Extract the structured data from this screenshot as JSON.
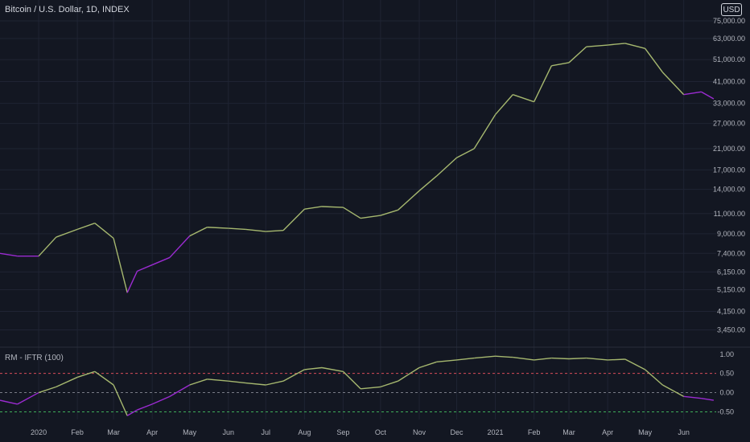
{
  "header": {
    "title": "Bitcoin / U.S. Dollar, 1D, INDEX",
    "currency_button": "USD"
  },
  "indicator": {
    "title": "RM - IFTR (100)"
  },
  "colors": {
    "bull": "#a6b86f",
    "bear": "#9b2bd1",
    "bg": "#131722",
    "grid": "#1f2433",
    "upper": "#d94c59",
    "lower": "#3fae5a",
    "zero": "#787b86"
  },
  "chart_data": [
    {
      "type": "line",
      "title": "Bitcoin / U.S. Dollar, 1D, INDEX",
      "y_scale": "log",
      "ylim": [
        3000,
        80000
      ],
      "y_ticks": [
        3450,
        4150,
        5150,
        6150,
        7400,
        9000,
        11000,
        14000,
        17000,
        21000,
        27000,
        33000,
        41000,
        51000,
        63000,
        75000
      ],
      "y_tick_labels": [
        "3,450.00",
        "4,150.00",
        "5,150.00",
        "6,150.00",
        "7,400.00",
        "9,000.00",
        "11,000.00",
        "14,000.00",
        "17,000.00",
        "21,000.00",
        "27,000.00",
        "33,000.00",
        "41,000.00",
        "51,000.00",
        "63,000.00",
        "75,000.00"
      ],
      "x_tick_labels": [
        "2020",
        "Feb",
        "Mar",
        "Apr",
        "May",
        "Jun",
        "Jul",
        "Aug",
        "Sep",
        "Oct",
        "Nov",
        "Dec",
        "2021",
        "Feb",
        "Mar",
        "Apr",
        "May",
        "Jun"
      ],
      "x": [
        "2019-12-01",
        "2019-12-15",
        "2020-01-01",
        "2020-01-15",
        "2020-02-01",
        "2020-02-15",
        "2020-03-01",
        "2020-03-12",
        "2020-03-20",
        "2020-04-01",
        "2020-04-15",
        "2020-05-01",
        "2020-05-15",
        "2020-06-01",
        "2020-06-15",
        "2020-07-01",
        "2020-07-15",
        "2020-08-01",
        "2020-08-15",
        "2020-09-01",
        "2020-09-15",
        "2020-10-01",
        "2020-10-15",
        "2020-11-01",
        "2020-11-15",
        "2020-12-01",
        "2020-12-15",
        "2021-01-01",
        "2021-01-15",
        "2021-02-01",
        "2021-02-15",
        "2021-03-01",
        "2021-03-15",
        "2021-04-01",
        "2021-04-15",
        "2021-05-01",
        "2021-05-15",
        "2021-06-01",
        "2021-06-15",
        "2021-06-25"
      ],
      "series": [
        {
          "values": [
            7400,
            7200,
            7200,
            8700,
            9400,
            10000,
            8600,
            5000,
            6200,
            6600,
            7100,
            8800,
            9600,
            9500,
            9400,
            9200,
            9300,
            11500,
            11800,
            11700,
            10500,
            10800,
            11400,
            13800,
            16000,
            19200,
            21000,
            29500,
            36000,
            33500,
            48000,
            49500,
            58000,
            59000,
            60000,
            57000,
            45000,
            36000,
            37000,
            34500
          ]
        }
      ]
    },
    {
      "type": "line",
      "title": "RM - IFTR (100)",
      "ylim": [
        -0.7,
        1.1
      ],
      "y_ticks": [
        -0.5,
        0,
        0.5,
        1
      ],
      "y_tick_labels": [
        "-0.50",
        "0.00",
        "0.50",
        "1.00"
      ],
      "reference_lines": [
        0.5,
        0,
        -0.5
      ],
      "x": [
        "2019-12-01",
        "2019-12-15",
        "2020-01-01",
        "2020-01-15",
        "2020-02-01",
        "2020-02-15",
        "2020-03-01",
        "2020-03-12",
        "2020-03-20",
        "2020-04-01",
        "2020-04-15",
        "2020-05-01",
        "2020-05-15",
        "2020-06-01",
        "2020-06-15",
        "2020-07-01",
        "2020-07-15",
        "2020-08-01",
        "2020-08-15",
        "2020-09-01",
        "2020-09-15",
        "2020-10-01",
        "2020-10-15",
        "2020-11-01",
        "2020-11-15",
        "2020-12-01",
        "2020-12-15",
        "2021-01-01",
        "2021-01-15",
        "2021-02-01",
        "2021-02-15",
        "2021-03-01",
        "2021-03-15",
        "2021-04-01",
        "2021-04-15",
        "2021-05-01",
        "2021-05-15",
        "2021-06-01",
        "2021-06-15",
        "2021-06-25"
      ],
      "series": [
        {
          "values": [
            -0.2,
            -0.3,
            0.0,
            0.15,
            0.4,
            0.55,
            0.2,
            -0.6,
            -0.45,
            -0.3,
            -0.1,
            0.2,
            0.35,
            0.3,
            0.25,
            0.2,
            0.3,
            0.6,
            0.65,
            0.55,
            0.1,
            0.15,
            0.3,
            0.65,
            0.8,
            0.85,
            0.9,
            0.95,
            0.92,
            0.85,
            0.9,
            0.88,
            0.9,
            0.85,
            0.87,
            0.6,
            0.2,
            -0.1,
            -0.15,
            -0.2
          ]
        }
      ]
    }
  ]
}
